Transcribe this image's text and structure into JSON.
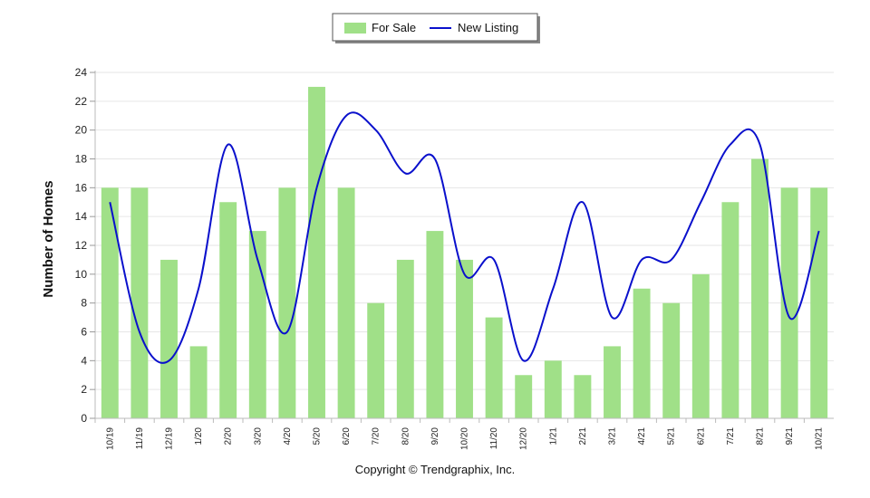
{
  "chart_data": {
    "type": "bar",
    "categories": [
      "10/19",
      "11/19",
      "12/19",
      "1/20",
      "2/20",
      "3/20",
      "4/20",
      "5/20",
      "6/20",
      "7/20",
      "8/20",
      "9/20",
      "10/20",
      "11/20",
      "12/20",
      "1/21",
      "2/21",
      "3/21",
      "4/21",
      "5/21",
      "6/21",
      "7/21",
      "8/21",
      "9/21",
      "10/21"
    ],
    "series": [
      {
        "name": "For Sale",
        "type": "bar",
        "color": "#a0e088",
        "values": [
          16,
          16,
          11,
          5,
          15,
          13,
          16,
          23,
          16,
          8,
          11,
          13,
          11,
          7,
          3,
          4,
          3,
          5,
          9,
          8,
          10,
          15,
          18,
          16,
          16
        ]
      },
      {
        "name": "New Listing",
        "type": "line",
        "color": "#0a10cc",
        "values": [
          15,
          6,
          4,
          9,
          19,
          11,
          6,
          16,
          21,
          20,
          17,
          18,
          10,
          11,
          4,
          9,
          15,
          7,
          11,
          11,
          15,
          19,
          19,
          7,
          13
        ]
      }
    ],
    "ylabel": "Number of Homes",
    "xlabel": "",
    "ylim": [
      0,
      24
    ],
    "yticks": [
      0,
      2,
      4,
      6,
      8,
      10,
      12,
      14,
      16,
      18,
      20,
      22,
      24
    ],
    "grid": true,
    "legend_position": "top-center"
  },
  "footer": {
    "copyright": "Copyright © Trendgraphix, Inc."
  }
}
